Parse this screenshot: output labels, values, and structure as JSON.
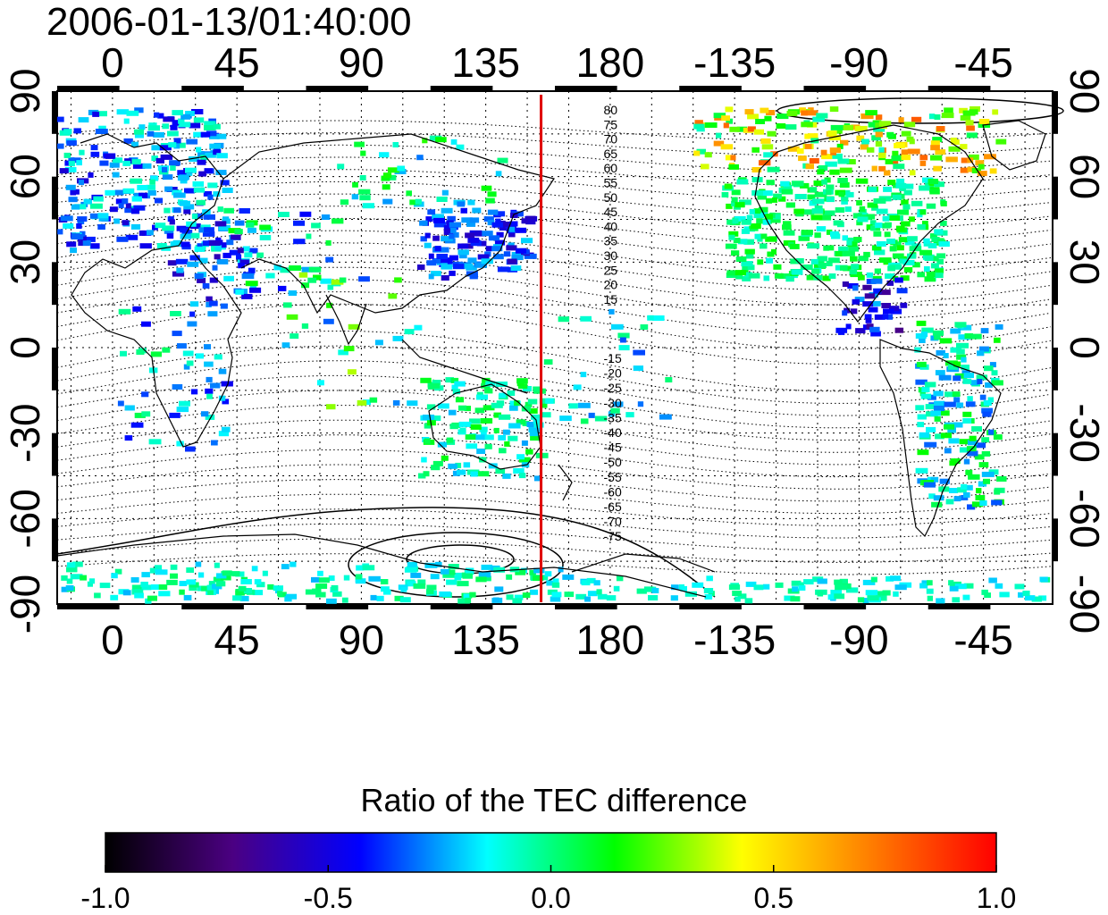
{
  "title": "2006-01-13/01:40:00",
  "map": {
    "lon_ticks": [
      "0",
      "45",
      "90",
      "135",
      "180",
      "-135",
      "-90",
      "-45"
    ],
    "lat_ticks_left": [
      "90",
      "60",
      "30",
      "0",
      "-30",
      "-60",
      "-90"
    ],
    "lat_ticks_right": [
      "90",
      "60",
      "30",
      "0",
      "-30",
      "-60",
      "-90"
    ],
    "meridian_line_color": "#e00000",
    "meridian_line_lon": 155,
    "contour_labels_north": [
      "80",
      "75",
      "70",
      "65",
      "60",
      "55",
      "50",
      "45",
      "40",
      "35",
      "30",
      "25",
      "20",
      "15"
    ],
    "contour_labels_south": [
      "-15",
      "-20",
      "-25",
      "-30",
      "-35",
      "-40",
      "-45",
      "-50",
      "-55",
      "-60",
      "-65",
      "-70",
      "-75"
    ]
  },
  "colorbar": {
    "title": "Ratio of the TEC difference",
    "ticks": [
      "-1.0",
      "-0.5",
      "0.0",
      "0.5",
      "1.0"
    ],
    "range": [
      -1.0,
      1.0
    ],
    "colors": [
      "#000000",
      "#4b0082",
      "#0000ff",
      "#00ffff",
      "#00ff00",
      "#ffff00",
      "#ff7f00",
      "#ff0000"
    ]
  }
}
